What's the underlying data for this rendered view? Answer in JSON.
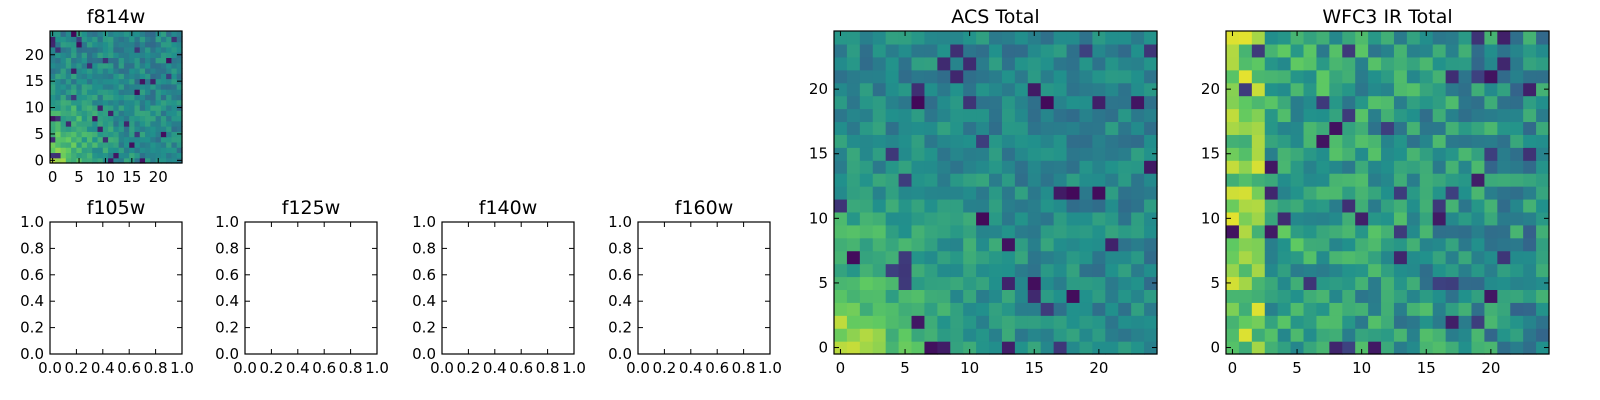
{
  "figure": {
    "colormap": [
      "#440154",
      "#3b528b",
      "#21918c",
      "#5ec962",
      "#fde725"
    ]
  },
  "chart_data": [
    {
      "type": "heatmap",
      "title": "f814w",
      "xlim": [
        -0.5,
        24.5
      ],
      "ylim": [
        -0.5,
        24.5
      ],
      "xticks": [
        "0",
        "5",
        "10",
        "15",
        "20"
      ],
      "yticks": [
        "0",
        "5",
        "10",
        "15",
        "20"
      ],
      "grid_size": [
        25,
        25
      ],
      "values": "procedural-noise with bright lower-left gradient"
    },
    {
      "type": "heatmap",
      "title": "f105w",
      "xlim": [
        0.0,
        1.0
      ],
      "ylim": [
        0.0,
        1.0
      ],
      "xticks": [
        "0.0",
        "0.2",
        "0.4",
        "0.6",
        "0.8",
        "1.0"
      ],
      "yticks": [
        "0.0",
        "0.2",
        "0.4",
        "0.6",
        "0.8",
        "1.0"
      ],
      "values": []
    },
    {
      "type": "heatmap",
      "title": "f125w",
      "xlim": [
        0.0,
        1.0
      ],
      "ylim": [
        0.0,
        1.0
      ],
      "xticks": [
        "0.0",
        "0.2",
        "0.4",
        "0.6",
        "0.8",
        "1.0"
      ],
      "yticks": [
        "0.0",
        "0.2",
        "0.4",
        "0.6",
        "0.8",
        "1.0"
      ],
      "values": []
    },
    {
      "type": "heatmap",
      "title": "f140w",
      "xlim": [
        0.0,
        1.0
      ],
      "ylim": [
        0.0,
        1.0
      ],
      "xticks": [
        "0.0",
        "0.2",
        "0.4",
        "0.6",
        "0.8",
        "1.0"
      ],
      "yticks": [
        "0.0",
        "0.2",
        "0.4",
        "0.6",
        "0.8",
        "1.0"
      ],
      "values": []
    },
    {
      "type": "heatmap",
      "title": "f160w",
      "xlim": [
        0.0,
        1.0
      ],
      "ylim": [
        0.0,
        1.0
      ],
      "xticks": [
        "0.0",
        "0.2",
        "0.4",
        "0.6",
        "0.8",
        "1.0"
      ],
      "yticks": [
        "0.0",
        "0.2",
        "0.4",
        "0.6",
        "0.8",
        "1.0"
      ],
      "values": []
    },
    {
      "type": "heatmap",
      "title": "ACS Total",
      "xlim": [
        -0.5,
        24.5
      ],
      "ylim": [
        -0.5,
        24.5
      ],
      "xticks": [
        "0",
        "5",
        "10",
        "15",
        "20"
      ],
      "yticks": [
        "0",
        "5",
        "10",
        "15",
        "20"
      ],
      "grid_size": [
        25,
        25
      ],
      "values": "procedural-noise with bright lower-left gradient"
    },
    {
      "type": "heatmap",
      "title": "WFC3 IR Total",
      "xlim": [
        -0.5,
        24.5
      ],
      "ylim": [
        -0.5,
        24.5
      ],
      "xticks": [
        "0",
        "5",
        "10",
        "15",
        "20"
      ],
      "yticks": [
        "0",
        "5",
        "10",
        "15",
        "20"
      ],
      "grid_size": [
        25,
        25
      ],
      "values": "procedural-noise with bright left half"
    }
  ]
}
